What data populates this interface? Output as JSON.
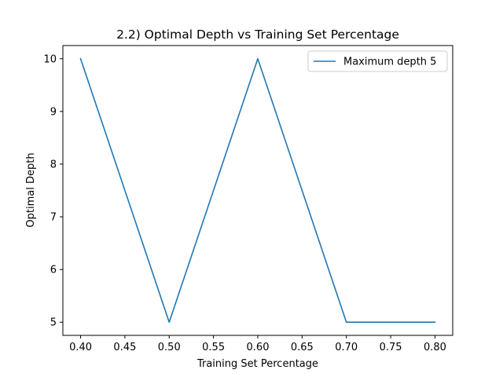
{
  "chart_data": {
    "type": "line",
    "title": "2.2) Optimal Depth vs Training Set Percentage",
    "xlabel": "Training Set Percentage",
    "ylabel": "Optimal Depth",
    "x": [
      0.4,
      0.5,
      0.6,
      0.7,
      0.8
    ],
    "series": [
      {
        "name": "Maximum depth 5",
        "values": [
          10,
          5,
          10,
          5,
          5
        ],
        "color": "#1f77b4"
      }
    ],
    "xlim": [
      0.38,
      0.82
    ],
    "ylim": [
      4.75,
      10.25
    ],
    "xticks": [
      0.4,
      0.45,
      0.5,
      0.55,
      0.6,
      0.65,
      0.7,
      0.75,
      0.8
    ],
    "xtick_labels": [
      "0.40",
      "0.45",
      "0.50",
      "0.55",
      "0.60",
      "0.65",
      "0.70",
      "0.75",
      "0.80"
    ],
    "yticks": [
      5,
      6,
      7,
      8,
      9,
      10
    ],
    "ytick_labels": [
      "5",
      "6",
      "7",
      "8",
      "9",
      "10"
    ],
    "grid": false,
    "legend_position": "top-right"
  }
}
